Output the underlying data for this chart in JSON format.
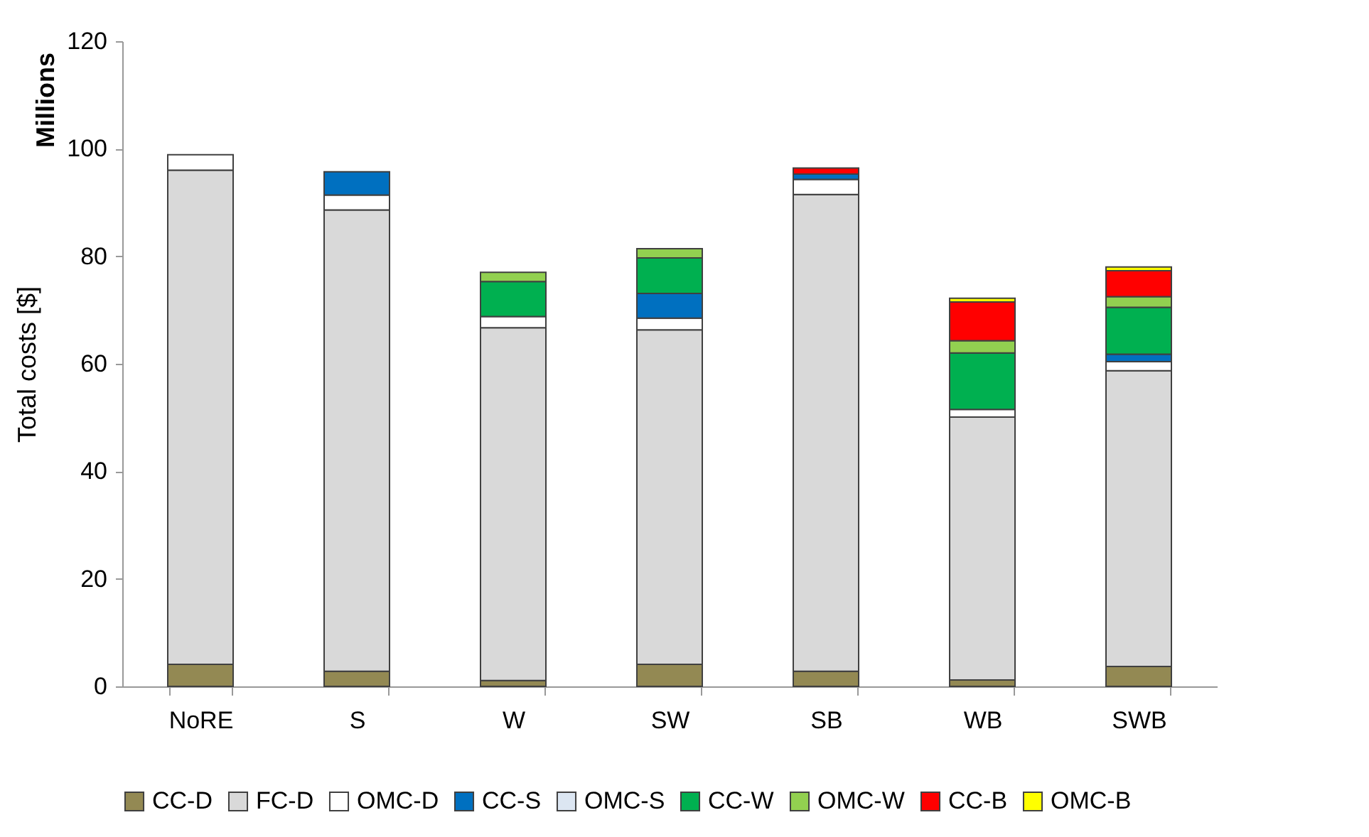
{
  "chart_data": {
    "type": "bar",
    "stacked": true,
    "ylabel": "Total costs [$]",
    "annotations": [
      "Millions"
    ],
    "categories": [
      "NoRE",
      "S",
      "W",
      "SW",
      "SB",
      "WB",
      "SWB"
    ],
    "series": [
      {
        "name": "CC-D",
        "color": "#938953",
        "values": [
          4.1,
          2.8,
          1.1,
          4.1,
          2.8,
          1.2,
          3.7
        ]
      },
      {
        "name": "FC-D",
        "color": "#d9d9d9",
        "values": [
          91.9,
          85.8,
          65.6,
          62.2,
          88.7,
          48.9,
          55.0
        ]
      },
      {
        "name": "OMC-D",
        "color": "#ffffff",
        "values": [
          2.9,
          2.8,
          2.1,
          2.2,
          2.8,
          1.4,
          1.7
        ]
      },
      {
        "name": "CC-S",
        "color": "#0070c0",
        "values": [
          null,
          4.3,
          null,
          4.6,
          1.0,
          null,
          1.4
        ]
      },
      {
        "name": "OMC-S",
        "color": "#dce6f2",
        "values": [
          null,
          null,
          null,
          null,
          null,
          null,
          null
        ]
      },
      {
        "name": "CC-W",
        "color": "#00b050",
        "values": [
          null,
          null,
          6.5,
          6.6,
          null,
          10.5,
          8.7
        ]
      },
      {
        "name": "OMC-W",
        "color": "#92d050",
        "values": [
          null,
          null,
          1.7,
          1.7,
          null,
          2.3,
          2.0
        ]
      },
      {
        "name": "CC-B",
        "color": "#ff0000",
        "values": [
          null,
          null,
          null,
          null,
          1.1,
          7.2,
          4.8
        ]
      },
      {
        "name": "OMC-B",
        "color": "#ffff00",
        "values": [
          null,
          null,
          null,
          null,
          null,
          0.7,
          0.7
        ]
      }
    ],
    "ylim": [
      0,
      120
    ],
    "yticks": [
      0,
      20,
      40,
      60,
      80,
      100,
      120
    ],
    "legend": "bottom"
  }
}
